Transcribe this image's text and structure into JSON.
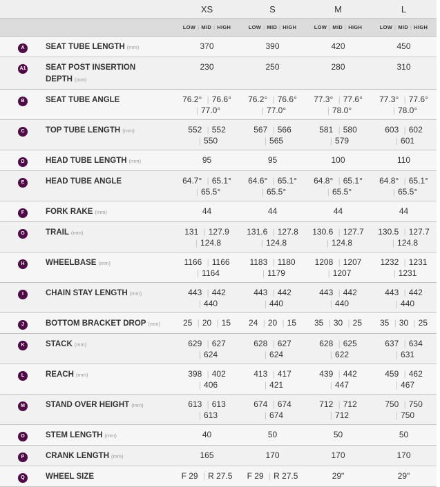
{
  "sizes": [
    "XS",
    "S",
    "M",
    "L"
  ],
  "sub_labels": [
    "LOW",
    "MID",
    "HIGH"
  ],
  "accent": "#4e0b45",
  "rows": [
    {
      "badge": "A",
      "label": "SEAT TUBE LENGTH",
      "unit": "(mm)",
      "cells": [
        [
          "370"
        ],
        [
          "390"
        ],
        [
          "420"
        ],
        [
          "450"
        ]
      ]
    },
    {
      "badge": "A1",
      "label": "SEAT POST INSERTION DEPTH",
      "unit": "(mm)",
      "cells": [
        [
          "230"
        ],
        [
          "250"
        ],
        [
          "280"
        ],
        [
          "310"
        ]
      ]
    },
    {
      "badge": "B",
      "label": "SEAT TUBE ANGLE",
      "unit": "",
      "cells": [
        [
          "76.2°",
          "76.6°",
          "77.0°"
        ],
        [
          "76.2°",
          "76.6°",
          "77.0°"
        ],
        [
          "77.3°",
          "77.6°",
          "78.0°"
        ],
        [
          "77.3°",
          "77.6°",
          "78.0°"
        ]
      ]
    },
    {
      "badge": "C",
      "label": "TOP TUBE LENGTH",
      "unit": "(mm)",
      "cells": [
        [
          "552",
          "552",
          "550"
        ],
        [
          "567",
          "566",
          "565"
        ],
        [
          "581",
          "580",
          "579"
        ],
        [
          "603",
          "602",
          "601"
        ]
      ]
    },
    {
      "badge": "D",
      "label": "HEAD TUBE LENGTH",
      "unit": "(mm)",
      "cells": [
        [
          "95"
        ],
        [
          "95"
        ],
        [
          "100"
        ],
        [
          "110"
        ]
      ]
    },
    {
      "badge": "E",
      "label": "HEAD TUBE ANGLE",
      "unit": "",
      "cells": [
        [
          "64.7°",
          "65.1°",
          "65.5°"
        ],
        [
          "64.6°",
          "65.1°",
          "65.5°"
        ],
        [
          "64.8°",
          "65.1°",
          "65.5°"
        ],
        [
          "64.8°",
          "65.1°",
          "65.5°"
        ]
      ]
    },
    {
      "badge": "F",
      "label": "FORK RAKE",
      "unit": "(mm)",
      "cells": [
        [
          "44"
        ],
        [
          "44"
        ],
        [
          "44"
        ],
        [
          "44"
        ]
      ]
    },
    {
      "badge": "G",
      "label": "TRAIL",
      "unit": "(mm)",
      "cells": [
        [
          "131",
          "127.9",
          "124.8"
        ],
        [
          "131.6",
          "127.8",
          "124.8"
        ],
        [
          "130.6",
          "127.7",
          "124.8"
        ],
        [
          "130.5",
          "127.7",
          "124.8"
        ]
      ]
    },
    {
      "badge": "H",
      "label": "WHEELBASE",
      "unit": "(mm)",
      "cells": [
        [
          "1166",
          "1166",
          "1164"
        ],
        [
          "1183",
          "1180",
          "1179"
        ],
        [
          "1208",
          "1207",
          "1207"
        ],
        [
          "1232",
          "1231",
          "1231"
        ]
      ]
    },
    {
      "badge": "I",
      "label": "CHAIN STAY LENGTH",
      "unit": "(mm)",
      "cells": [
        [
          "443",
          "442",
          "440"
        ],
        [
          "443",
          "442",
          "440"
        ],
        [
          "443",
          "442",
          "440"
        ],
        [
          "443",
          "442",
          "440"
        ]
      ]
    },
    {
      "badge": "J",
      "label": "BOTTOM BRACKET DROP",
      "unit": "(mm)",
      "cells": [
        [
          "25",
          "20",
          "15"
        ],
        [
          "24",
          "20",
          "15"
        ],
        [
          "35",
          "30",
          "25"
        ],
        [
          "35",
          "30",
          "25"
        ]
      ]
    },
    {
      "badge": "K",
      "label": "STACK",
      "unit": "(mm)",
      "cells": [
        [
          "629",
          "627",
          "624"
        ],
        [
          "628",
          "627",
          "624"
        ],
        [
          "628",
          "625",
          "622"
        ],
        [
          "637",
          "634",
          "631"
        ]
      ]
    },
    {
      "badge": "L",
      "label": "REACH",
      "unit": "(mm)",
      "cells": [
        [
          "398",
          "402",
          "406"
        ],
        [
          "413",
          "417",
          "421"
        ],
        [
          "439",
          "442",
          "447"
        ],
        [
          "459",
          "462",
          "467"
        ]
      ]
    },
    {
      "badge": "M",
      "label": "STAND OVER HEIGHT",
      "unit": "(mm)",
      "cells": [
        [
          "613",
          "613",
          "613"
        ],
        [
          "674",
          "674",
          "674"
        ],
        [
          "712",
          "712",
          "712"
        ],
        [
          "750",
          "750",
          "750"
        ]
      ]
    },
    {
      "badge": "O",
      "label": "STEM LENGTH",
      "unit": "(mm)",
      "cells": [
        [
          "40"
        ],
        [
          "50"
        ],
        [
          "50"
        ],
        [
          "50"
        ]
      ]
    },
    {
      "badge": "P",
      "label": "CRANK LENGTH",
      "unit": "(mm)",
      "cells": [
        [
          "165"
        ],
        [
          "170"
        ],
        [
          "170"
        ],
        [
          "170"
        ]
      ]
    },
    {
      "badge": "Q",
      "label": "WHEEL SIZE",
      "unit": "",
      "cells": [
        [
          "F 29",
          "R 27.5"
        ],
        [
          "F 29",
          "R 27.5"
        ],
        [
          "29\""
        ],
        [
          "29\""
        ]
      ]
    }
  ]
}
